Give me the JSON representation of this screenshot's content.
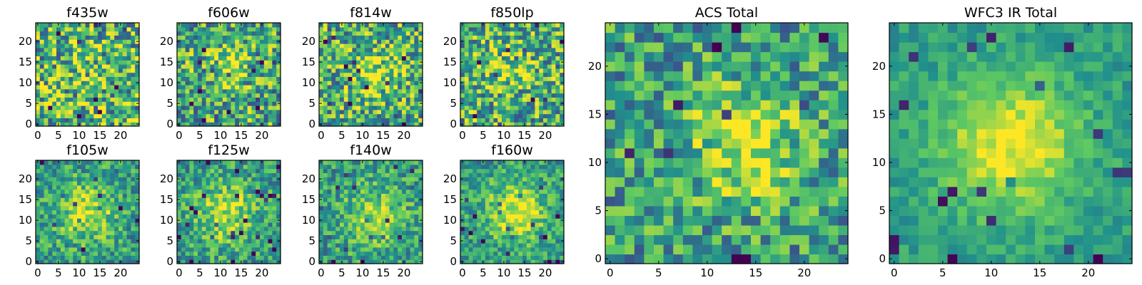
{
  "figure": {
    "colormap": "viridis",
    "colormap_stops": [
      "#440154",
      "#3b528b",
      "#21918c",
      "#5ec962",
      "#fde725"
    ]
  },
  "chart_data": [
    {
      "type": "heatmap",
      "title": "f435w",
      "size": 25,
      "xticks": [
        0,
        5,
        10,
        15,
        20
      ],
      "yticks": [
        0,
        5,
        10,
        15,
        20
      ],
      "xlim": [
        0,
        24
      ],
      "ylim": [
        0,
        24
      ],
      "noise": 0.85,
      "blob": {
        "x": 12,
        "y": 12,
        "amp": 0.05,
        "sigma": 4
      },
      "base": 0.66,
      "seed": 11
    },
    {
      "type": "heatmap",
      "title": "f606w",
      "size": 25,
      "xticks": [
        0,
        5,
        10,
        15,
        20
      ],
      "yticks": [
        0,
        5,
        10,
        15,
        20
      ],
      "xlim": [
        0,
        24
      ],
      "ylim": [
        0,
        24
      ],
      "noise": 0.75,
      "blob": {
        "x": 12,
        "y": 14,
        "amp": 0.25,
        "sigma": 4
      },
      "base": 0.6,
      "seed": 23
    },
    {
      "type": "heatmap",
      "title": "f814w",
      "size": 25,
      "xticks": [
        0,
        5,
        10,
        15,
        20
      ],
      "yticks": [
        0,
        5,
        10,
        15,
        20
      ],
      "xlim": [
        0,
        24
      ],
      "ylim": [
        0,
        24
      ],
      "noise": 0.75,
      "blob": {
        "x": 13,
        "y": 12,
        "amp": 0.3,
        "sigma": 4
      },
      "base": 0.62,
      "seed": 37
    },
    {
      "type": "heatmap",
      "title": "f850lp",
      "size": 25,
      "xticks": [
        0,
        5,
        10,
        15,
        20
      ],
      "yticks": [
        0,
        5,
        10,
        15,
        20
      ],
      "xlim": [
        0,
        24
      ],
      "ylim": [
        0,
        24
      ],
      "noise": 0.75,
      "blob": {
        "x": 12,
        "y": 13,
        "amp": 0.2,
        "sigma": 4
      },
      "base": 0.62,
      "seed": 41
    },
    {
      "type": "heatmap",
      "title": "f105w",
      "size": 25,
      "xticks": [
        0,
        5,
        10,
        15,
        20
      ],
      "yticks": [
        0,
        5,
        10,
        15,
        20
      ],
      "xlim": [
        0,
        24
      ],
      "ylim": [
        0,
        24
      ],
      "noise": 0.5,
      "blob": {
        "x": 12,
        "y": 12,
        "amp": 0.35,
        "sigma": 5
      },
      "base": 0.55,
      "seed": 53
    },
    {
      "type": "heatmap",
      "title": "f125w",
      "size": 25,
      "xticks": [
        0,
        5,
        10,
        15,
        20
      ],
      "yticks": [
        0,
        5,
        10,
        15,
        20
      ],
      "xlim": [
        0,
        24
      ],
      "ylim": [
        0,
        24
      ],
      "noise": 0.5,
      "blob": {
        "x": 11,
        "y": 12,
        "amp": 0.35,
        "sigma": 5
      },
      "base": 0.55,
      "seed": 67
    },
    {
      "type": "heatmap",
      "title": "f140w",
      "size": 25,
      "xticks": [
        0,
        5,
        10,
        15,
        20
      ],
      "yticks": [
        0,
        5,
        10,
        15,
        20
      ],
      "xlim": [
        0,
        24
      ],
      "ylim": [
        0,
        24
      ],
      "noise": 0.5,
      "blob": {
        "x": 13,
        "y": 11,
        "amp": 0.3,
        "sigma": 5
      },
      "base": 0.55,
      "seed": 79
    },
    {
      "type": "heatmap",
      "title": "f160w",
      "size": 25,
      "xticks": [
        0,
        5,
        10,
        15,
        20
      ],
      "yticks": [
        0,
        5,
        10,
        15,
        20
      ],
      "xlim": [
        0,
        24
      ],
      "ylim": [
        0,
        24
      ],
      "noise": 0.45,
      "blob": {
        "x": 13,
        "y": 12,
        "amp": 0.4,
        "sigma": 5
      },
      "base": 0.55,
      "seed": 83
    },
    {
      "type": "heatmap",
      "title": "ACS Total",
      "size": 25,
      "xticks": [
        0,
        5,
        10,
        15,
        20
      ],
      "yticks": [
        0,
        5,
        10,
        15,
        20
      ],
      "xlim": [
        0,
        24
      ],
      "ylim": [
        0,
        24
      ],
      "noise": 0.6,
      "blob": {
        "x": 14,
        "y": 12,
        "amp": 0.4,
        "sigma": 4
      },
      "base": 0.55,
      "seed": 97
    },
    {
      "type": "heatmap",
      "title": "WFC3 IR Total",
      "size": 25,
      "xticks": [
        0,
        5,
        10,
        15,
        20
      ],
      "yticks": [
        0,
        5,
        10,
        15,
        20
      ],
      "xlim": [
        0,
        24
      ],
      "ylim": [
        0,
        24
      ],
      "noise": 0.25,
      "blob": {
        "x": 12,
        "y": 12,
        "amp": 0.45,
        "sigma": 5
      },
      "base": 0.55,
      "seed": 101
    }
  ]
}
